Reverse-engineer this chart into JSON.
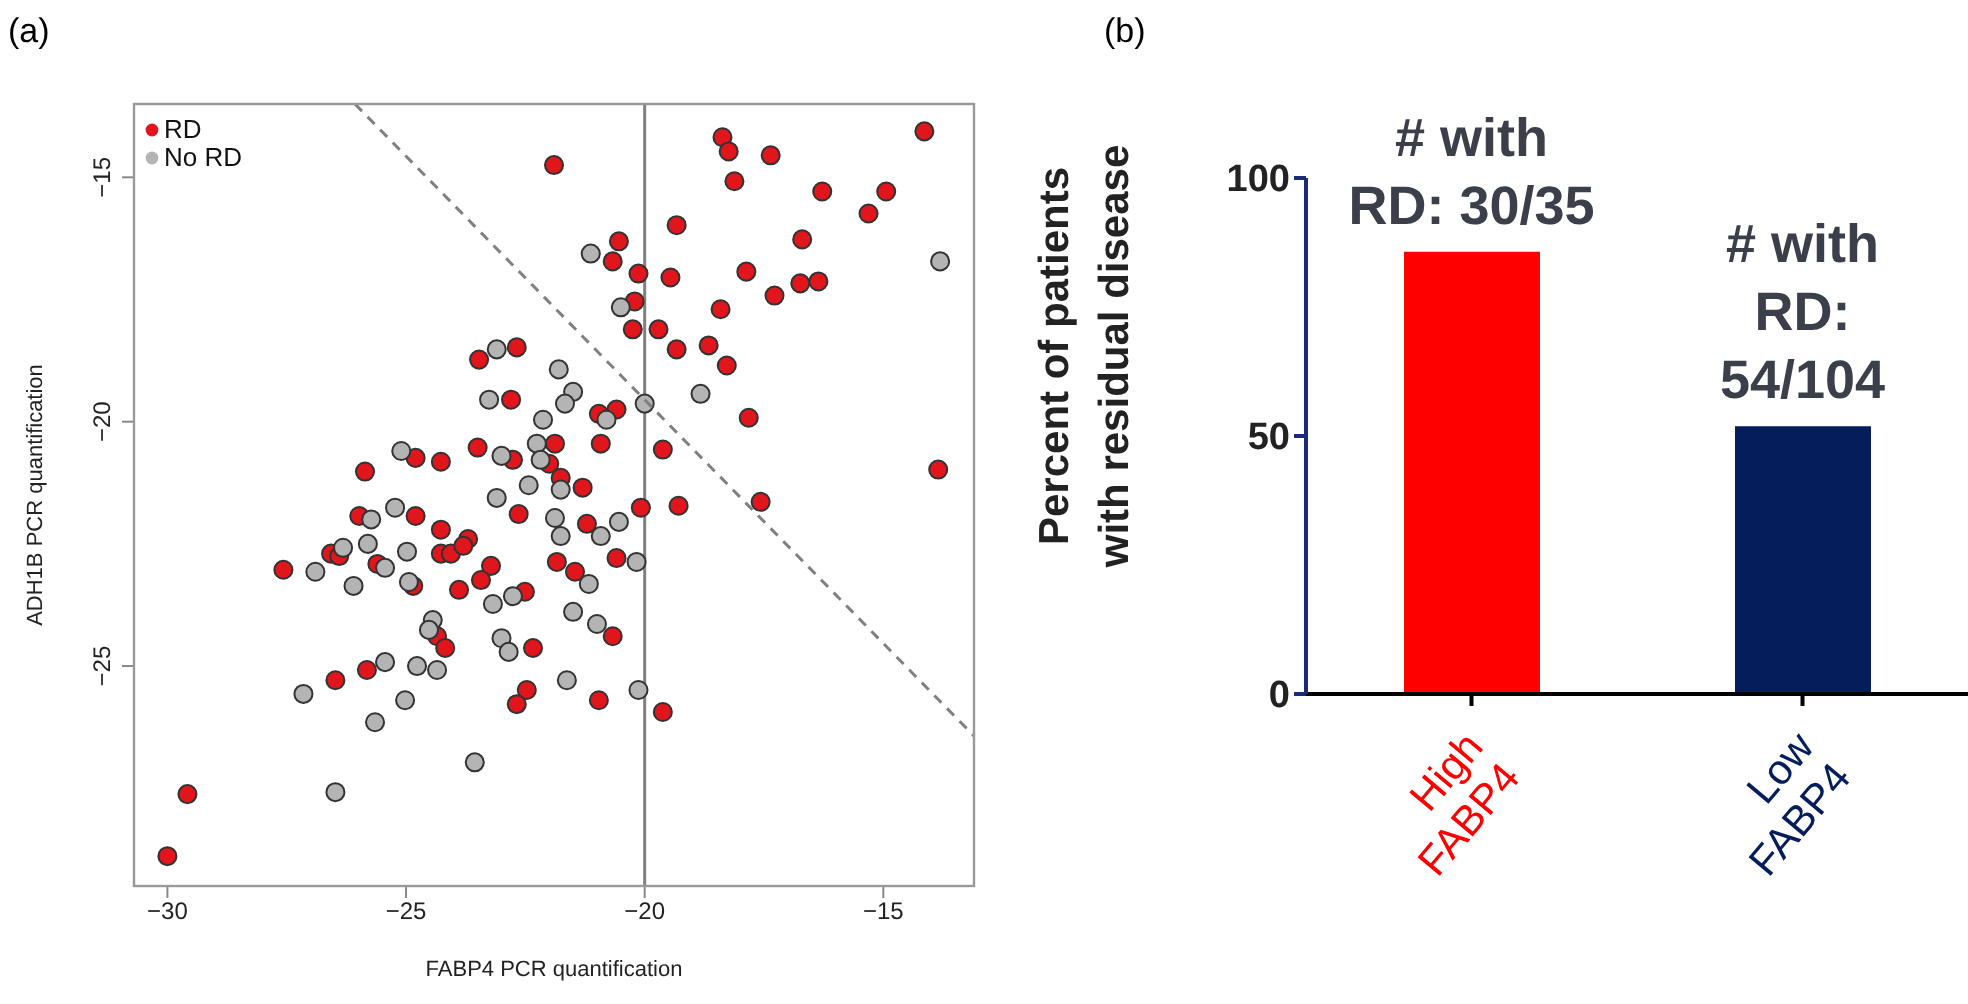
{
  "chart_data": [
    {
      "type": "scatter",
      "title": "(a)",
      "xlabel": "FABP4 PCR quantification",
      "ylabel": "ADH1B PCR quantification",
      "xlim": [
        -30.7,
        -13.1
      ],
      "ylim": [
        -29.5,
        -13.5
      ],
      "xticks": [
        -30,
        -25,
        -20,
        -15
      ],
      "yticks": [
        -25,
        -20,
        -15
      ],
      "grid": false,
      "legend": "top left",
      "marker": "circle",
      "ref_lines": [
        {
          "axis": "x",
          "value": -20,
          "color": "#808080",
          "line_style": "solid"
        }
      ],
      "series": [
        {
          "name": "RD",
          "color": "#e0161c",
          "x": [
            -21.9,
            -23.47,
            -22.68,
            -22.8,
            -23.5,
            -24.8,
            -24.27,
            -25.86,
            -22.76,
            -22.0,
            -21.88,
            -22.64,
            -24.8,
            -25.98,
            -24.27,
            -23.7,
            -18.37,
            -18.24,
            -17.36,
            -18.12,
            -16.28,
            -14.94,
            -15.31,
            -14.14,
            -19.33,
            -20.54,
            -20.67,
            -20.13,
            -19.46,
            -17.87,
            -16.7,
            -16.74,
            -16.36,
            -17.28,
            -18.41,
            -20.21,
            -20.25,
            -19.71,
            -19.33,
            -18.66,
            -18.28,
            -17.82,
            -19.62,
            -20.96,
            -20.59,
            -20.92,
            -21.76,
            -21.3,
            -20.08,
            -19.29,
            -17.57,
            -13.85,
            -21.21,
            -20.59,
            -21.84,
            -21.46,
            -22.51,
            -22.34,
            -22.47,
            -20.67,
            -20.96,
            -19.62,
            -26.57,
            -26.4,
            -27.57,
            -25.6,
            -24.27,
            -24.06,
            -23.8,
            -23.22,
            -23.43,
            -23.89,
            -24.85,
            -24.35,
            -24.18,
            -26.48,
            -25.82,
            -22.68,
            -29.58,
            -30.0
          ],
          "values": [
            -14.75,
            -18.73,
            -18.48,
            -19.55,
            -20.53,
            -20.74,
            -20.82,
            -21.02,
            -20.78,
            -20.86,
            -20.45,
            -21.89,
            -21.93,
            -21.93,
            -22.21,
            -22.4,
            -14.18,
            -14.47,
            -14.55,
            -15.08,
            -15.29,
            -15.29,
            -15.74,
            -14.06,
            -15.98,
            -16.31,
            -16.72,
            -16.97,
            -17.05,
            -16.93,
            -16.27,
            -17.17,
            -17.13,
            -17.42,
            -17.7,
            -17.54,
            -18.11,
            -18.11,
            -18.52,
            -18.44,
            -18.85,
            -19.92,
            -20.57,
            -19.84,
            -19.75,
            -20.45,
            -21.15,
            -21.35,
            -21.76,
            -21.72,
            -21.64,
            -20.98,
            -22.09,
            -22.79,
            -22.87,
            -23.07,
            -23.48,
            -24.63,
            -25.49,
            -24.39,
            -25.7,
            -25.94,
            -22.7,
            -22.75,
            -23.03,
            -22.91,
            -22.7,
            -22.7,
            -22.54,
            -22.95,
            -23.24,
            -23.44,
            -23.36,
            -24.39,
            -24.63,
            -25.29,
            -25.08,
            -25.78,
            -27.62,
            -28.89
          ]
        },
        {
          "name": "No RD",
          "color": "#b4b4b4",
          "x": [
            -23.1,
            -23.26,
            -22.13,
            -21.8,
            -25.1,
            -23.0,
            -22.26,
            -22.43,
            -23.1,
            -25.23,
            -25.73,
            -25.8,
            -24.98,
            -21.13,
            -20.5,
            -21.5,
            -21.67,
            -20.8,
            -20.0,
            -18.83,
            -22.18,
            -21.76,
            -21.88,
            -21.76,
            -20.92,
            -20.54,
            -13.81,
            -20.17,
            -21.17,
            -21.5,
            -21.0,
            -21.63,
            -20.13,
            -26.32,
            -26.9,
            -26.1,
            -25.44,
            -24.94,
            -23.18,
            -22.76,
            -24.44,
            -24.52,
            -23.0,
            -22.85,
            -25.44,
            -24.77,
            -24.35,
            -27.15,
            -25.02,
            -25.65,
            -23.56,
            -26.48
          ],
          "values": [
            -18.52,
            -19.55,
            -19.96,
            -18.93,
            -20.6,
            -20.7,
            -20.45,
            -21.3,
            -21.56,
            -21.76,
            -22.0,
            -22.5,
            -22.66,
            -16.56,
            -17.66,
            -19.39,
            -19.63,
            -19.96,
            -19.63,
            -19.43,
            -20.78,
            -21.39,
            -21.97,
            -22.34,
            -22.34,
            -22.05,
            -16.72,
            -22.87,
            -23.32,
            -23.89,
            -24.14,
            -25.29,
            -25.49,
            -22.58,
            -23.07,
            -23.36,
            -22.99,
            -23.28,
            -23.73,
            -23.57,
            -24.06,
            -24.26,
            -24.43,
            -24.71,
            -24.92,
            -25.0,
            -25.08,
            -25.57,
            -25.7,
            -26.15,
            -26.97,
            -27.58
          ]
        },
        {
          "type": "line",
          "color": "#808080",
          "line_style": "dashed",
          "marker": "none",
          "x": [
            -26.07,
            -13.1
          ],
          "values": [
            -13.5,
            -26.43
          ]
        }
      ]
    },
    {
      "type": "bar",
      "title": "(b)",
      "ylabel": "Percent of patients\nwith residual disease",
      "categories": [
        "High\nFABP4",
        "Low\nFABP4"
      ],
      "values": [
        85.7,
        51.9
      ],
      "colors": [
        "#ff0000",
        "#051d5b"
      ],
      "ylim": [
        0,
        100
      ],
      "yticks": [
        0,
        50,
        100
      ],
      "grid": false,
      "legend": false,
      "annotations": [
        {
          "text": "# with\nRD: 30/35",
          "x": "High\nFABP4",
          "y": 85.7
        },
        {
          "text": "# with\nRD:\n54/104",
          "x": "Low\nFABP4",
          "y": 51.9
        }
      ]
    }
  ]
}
